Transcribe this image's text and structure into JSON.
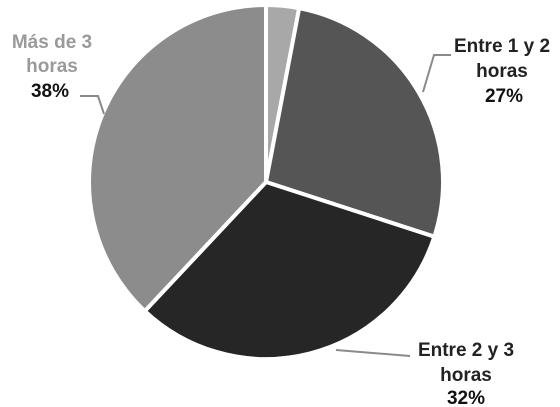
{
  "chart_data": {
    "type": "pie",
    "title": "",
    "slices": [
      {
        "name": "",
        "value": 3,
        "color": "#a8a8a8",
        "label_lines": [],
        "value_label": ""
      },
      {
        "name": "Entre 1 y 2 horas",
        "value": 27,
        "color": "#555555",
        "label_lines": [
          "Entre 1 y 2",
          "horas"
        ],
        "value_label": "27%",
        "label_color": "#222222"
      },
      {
        "name": "Entre 2 y 3 horas",
        "value": 32,
        "color": "#262626",
        "label_lines": [
          "Entre 2 y 3",
          "horas"
        ],
        "value_label": "32%",
        "label_color": "#222222"
      },
      {
        "name": "Más de 3 horas",
        "value": 38,
        "color": "#8c8c8c",
        "label_lines": [
          "Más de 3",
          "horas"
        ],
        "value_label": "38%",
        "label_color": "#9a9a9a"
      }
    ]
  }
}
